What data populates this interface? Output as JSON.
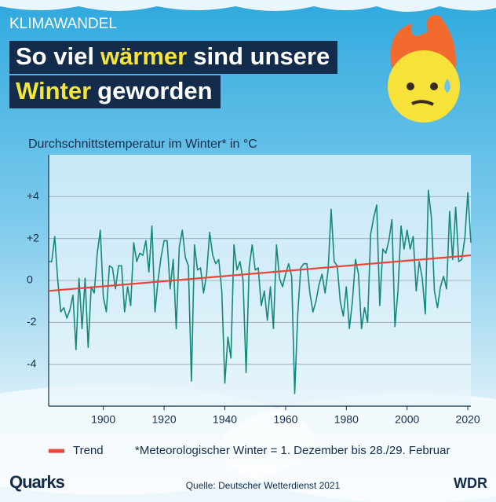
{
  "header": {
    "kicker": "KLIMAWANDEL",
    "title_line1": [
      "So viel",
      "wärmer",
      "sind unsere"
    ],
    "title_line2": [
      "Winter",
      "geworden"
    ]
  },
  "chart_data": {
    "type": "line",
    "title": "Durchschnittstemperatur im Winter* in °C",
    "x": [
      1882,
      1883,
      1884,
      1885,
      1886,
      1887,
      1888,
      1889,
      1890,
      1891,
      1892,
      1893,
      1894,
      1895,
      1896,
      1897,
      1898,
      1899,
      1900,
      1901,
      1902,
      1903,
      1904,
      1905,
      1906,
      1907,
      1908,
      1909,
      1910,
      1911,
      1912,
      1913,
      1914,
      1915,
      1916,
      1917,
      1918,
      1919,
      1920,
      1921,
      1922,
      1923,
      1924,
      1925,
      1926,
      1927,
      1928,
      1929,
      1930,
      1931,
      1932,
      1933,
      1934,
      1935,
      1936,
      1937,
      1938,
      1939,
      1940,
      1941,
      1942,
      1943,
      1944,
      1945,
      1946,
      1947,
      1948,
      1949,
      1950,
      1951,
      1952,
      1953,
      1954,
      1955,
      1956,
      1957,
      1958,
      1959,
      1960,
      1961,
      1962,
      1963,
      1964,
      1965,
      1966,
      1967,
      1968,
      1969,
      1970,
      1971,
      1972,
      1973,
      1974,
      1975,
      1976,
      1977,
      1978,
      1979,
      1980,
      1981,
      1982,
      1983,
      1984,
      1985,
      1986,
      1987,
      1988,
      1989,
      1990,
      1991,
      1992,
      1993,
      1994,
      1995,
      1996,
      1997,
      1998,
      1999,
      2000,
      2001,
      2002,
      2003,
      2004,
      2005,
      2006,
      2007,
      2008,
      2009,
      2010,
      2011,
      2012,
      2013,
      2014,
      2015,
      2016,
      2017,
      2018,
      2019,
      2020,
      2021
    ],
    "series": [
      {
        "color": "#14897b",
        "values": [
          0.9,
          0.9,
          2.1,
          0.0,
          -1.5,
          -1.3,
          -1.8,
          -1.4,
          -0.7,
          -3.3,
          0.1,
          -2.3,
          0.1,
          -3.2,
          -0.3,
          -0.6,
          1.3,
          2.4,
          -0.8,
          -1.5,
          0.7,
          0.6,
          -0.4,
          0.7,
          0.7,
          -1.5,
          -0.3,
          -1.2,
          1.8,
          0.9,
          1.3,
          1.2,
          1.9,
          0.4,
          2.6,
          -1.5,
          0.0,
          1.1,
          1.9,
          1.9,
          -0.4,
          1.0,
          -2.3,
          1.6,
          2.4,
          1.1,
          0.7,
          -4.8,
          1.7,
          0.5,
          0.6,
          -0.6,
          0.3,
          2.3,
          1.2,
          0.8,
          1.0,
          -0.5,
          -4.9,
          -2.7,
          -3.7,
          1.7,
          0.5,
          0.9,
          0.0,
          -4.4,
          0.6,
          1.7,
          0.5,
          0.6,
          -1.2,
          -0.5,
          -1.9,
          -0.3,
          -2.3,
          1.7,
          0.1,
          -0.3,
          0.3,
          0.8,
          0.2,
          -5.4,
          -1.6,
          0.6,
          0.8,
          0.8,
          -0.6,
          -1.5,
          -1.0,
          -0.2,
          0.3,
          -0.6,
          0.5,
          3.4,
          0.9,
          0.7,
          -1.0,
          -1.7,
          -0.3,
          -2.3,
          -1.0,
          1.0,
          0.3,
          -2.3,
          -1.3,
          -2.0,
          2.2,
          3.0,
          3.6,
          -1.2,
          1.5,
          1.3,
          1.9,
          2.9,
          -2.2,
          -0.5,
          2.6,
          1.5,
          2.4,
          1.5,
          2.1,
          -0.5,
          0.9,
          0.1,
          -1.6,
          4.3,
          3.0,
          -0.5,
          -1.3,
          -0.3,
          0.2,
          -0.4,
          3.3,
          1.0,
          3.5,
          0.9,
          1.0,
          2.0,
          4.2,
          1.8
        ]
      }
    ],
    "trend": {
      "name": "Trend",
      "color": "#e8453c",
      "x": [
        1882,
        2021
      ],
      "values": [
        -0.5,
        1.2
      ]
    },
    "xlim": [
      1882,
      2021
    ],
    "xticks": [
      1900,
      1920,
      1940,
      1960,
      1980,
      2000,
      2020
    ],
    "ylim": [
      -6,
      6
    ],
    "yticks": [
      -4,
      -2,
      0,
      {
        "value": 2,
        "label": "+2"
      },
      {
        "value": 4,
        "label": "+4"
      }
    ],
    "grid": true,
    "footnote": "*Meteorologischer Winter = 1. Dezember bis 28./29. Februar",
    "source": "Quelle: Deutscher Wetterdienst 2021"
  },
  "footer": {
    "brand": "Quarks",
    "broadcaster": "WDR"
  }
}
